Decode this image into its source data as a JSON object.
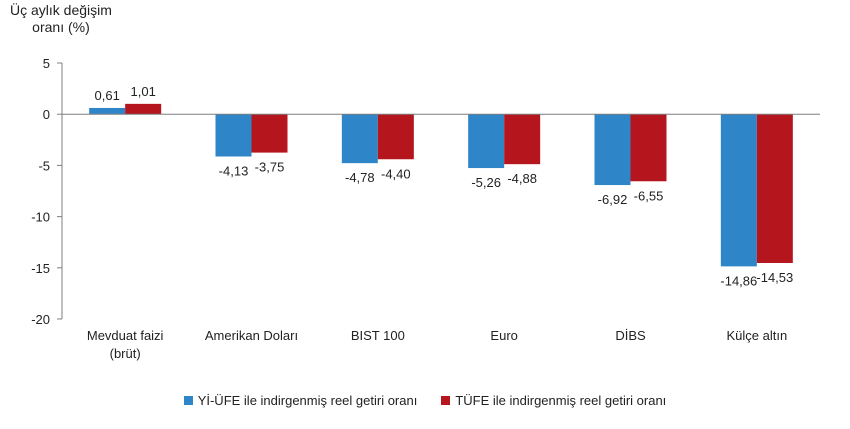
{
  "chart_data": {
    "type": "bar",
    "ylabel_line1": "Üç aylık değişim",
    "ylabel_line2": "oranı (%)",
    "ylim": [
      -20,
      5
    ],
    "yticks": [
      5,
      0,
      -5,
      -10,
      -15,
      -20
    ],
    "categories": [
      [
        "Mevduat faizi",
        "(brüt)"
      ],
      [
        "Amerikan Doları"
      ],
      [
        "BIST 100"
      ],
      [
        "Euro"
      ],
      [
        "DİBS"
      ],
      [
        "Külçe altın"
      ]
    ],
    "series": [
      {
        "name": "Yİ-ÜFE ile indirgenmiş reel getiri oranı",
        "color": "#2e86c8",
        "values": [
          0.61,
          -4.13,
          -4.78,
          -5.26,
          -6.92,
          -14.86
        ],
        "labels": [
          "0,61",
          "-4,13",
          "-4,78",
          "-5,26",
          "-6,92",
          "-14,86"
        ]
      },
      {
        "name": "TÜFE ile indirgenmiş reel getiri oranı",
        "color": "#b5161e",
        "values": [
          1.01,
          -3.75,
          -4.4,
          -4.88,
          -6.55,
          -14.53
        ],
        "labels": [
          "1,01",
          "-3,75",
          "-4,40",
          "-4,88",
          "-6,55",
          "-14,53"
        ]
      }
    ],
    "grid": false,
    "legend_position": "bottom"
  }
}
